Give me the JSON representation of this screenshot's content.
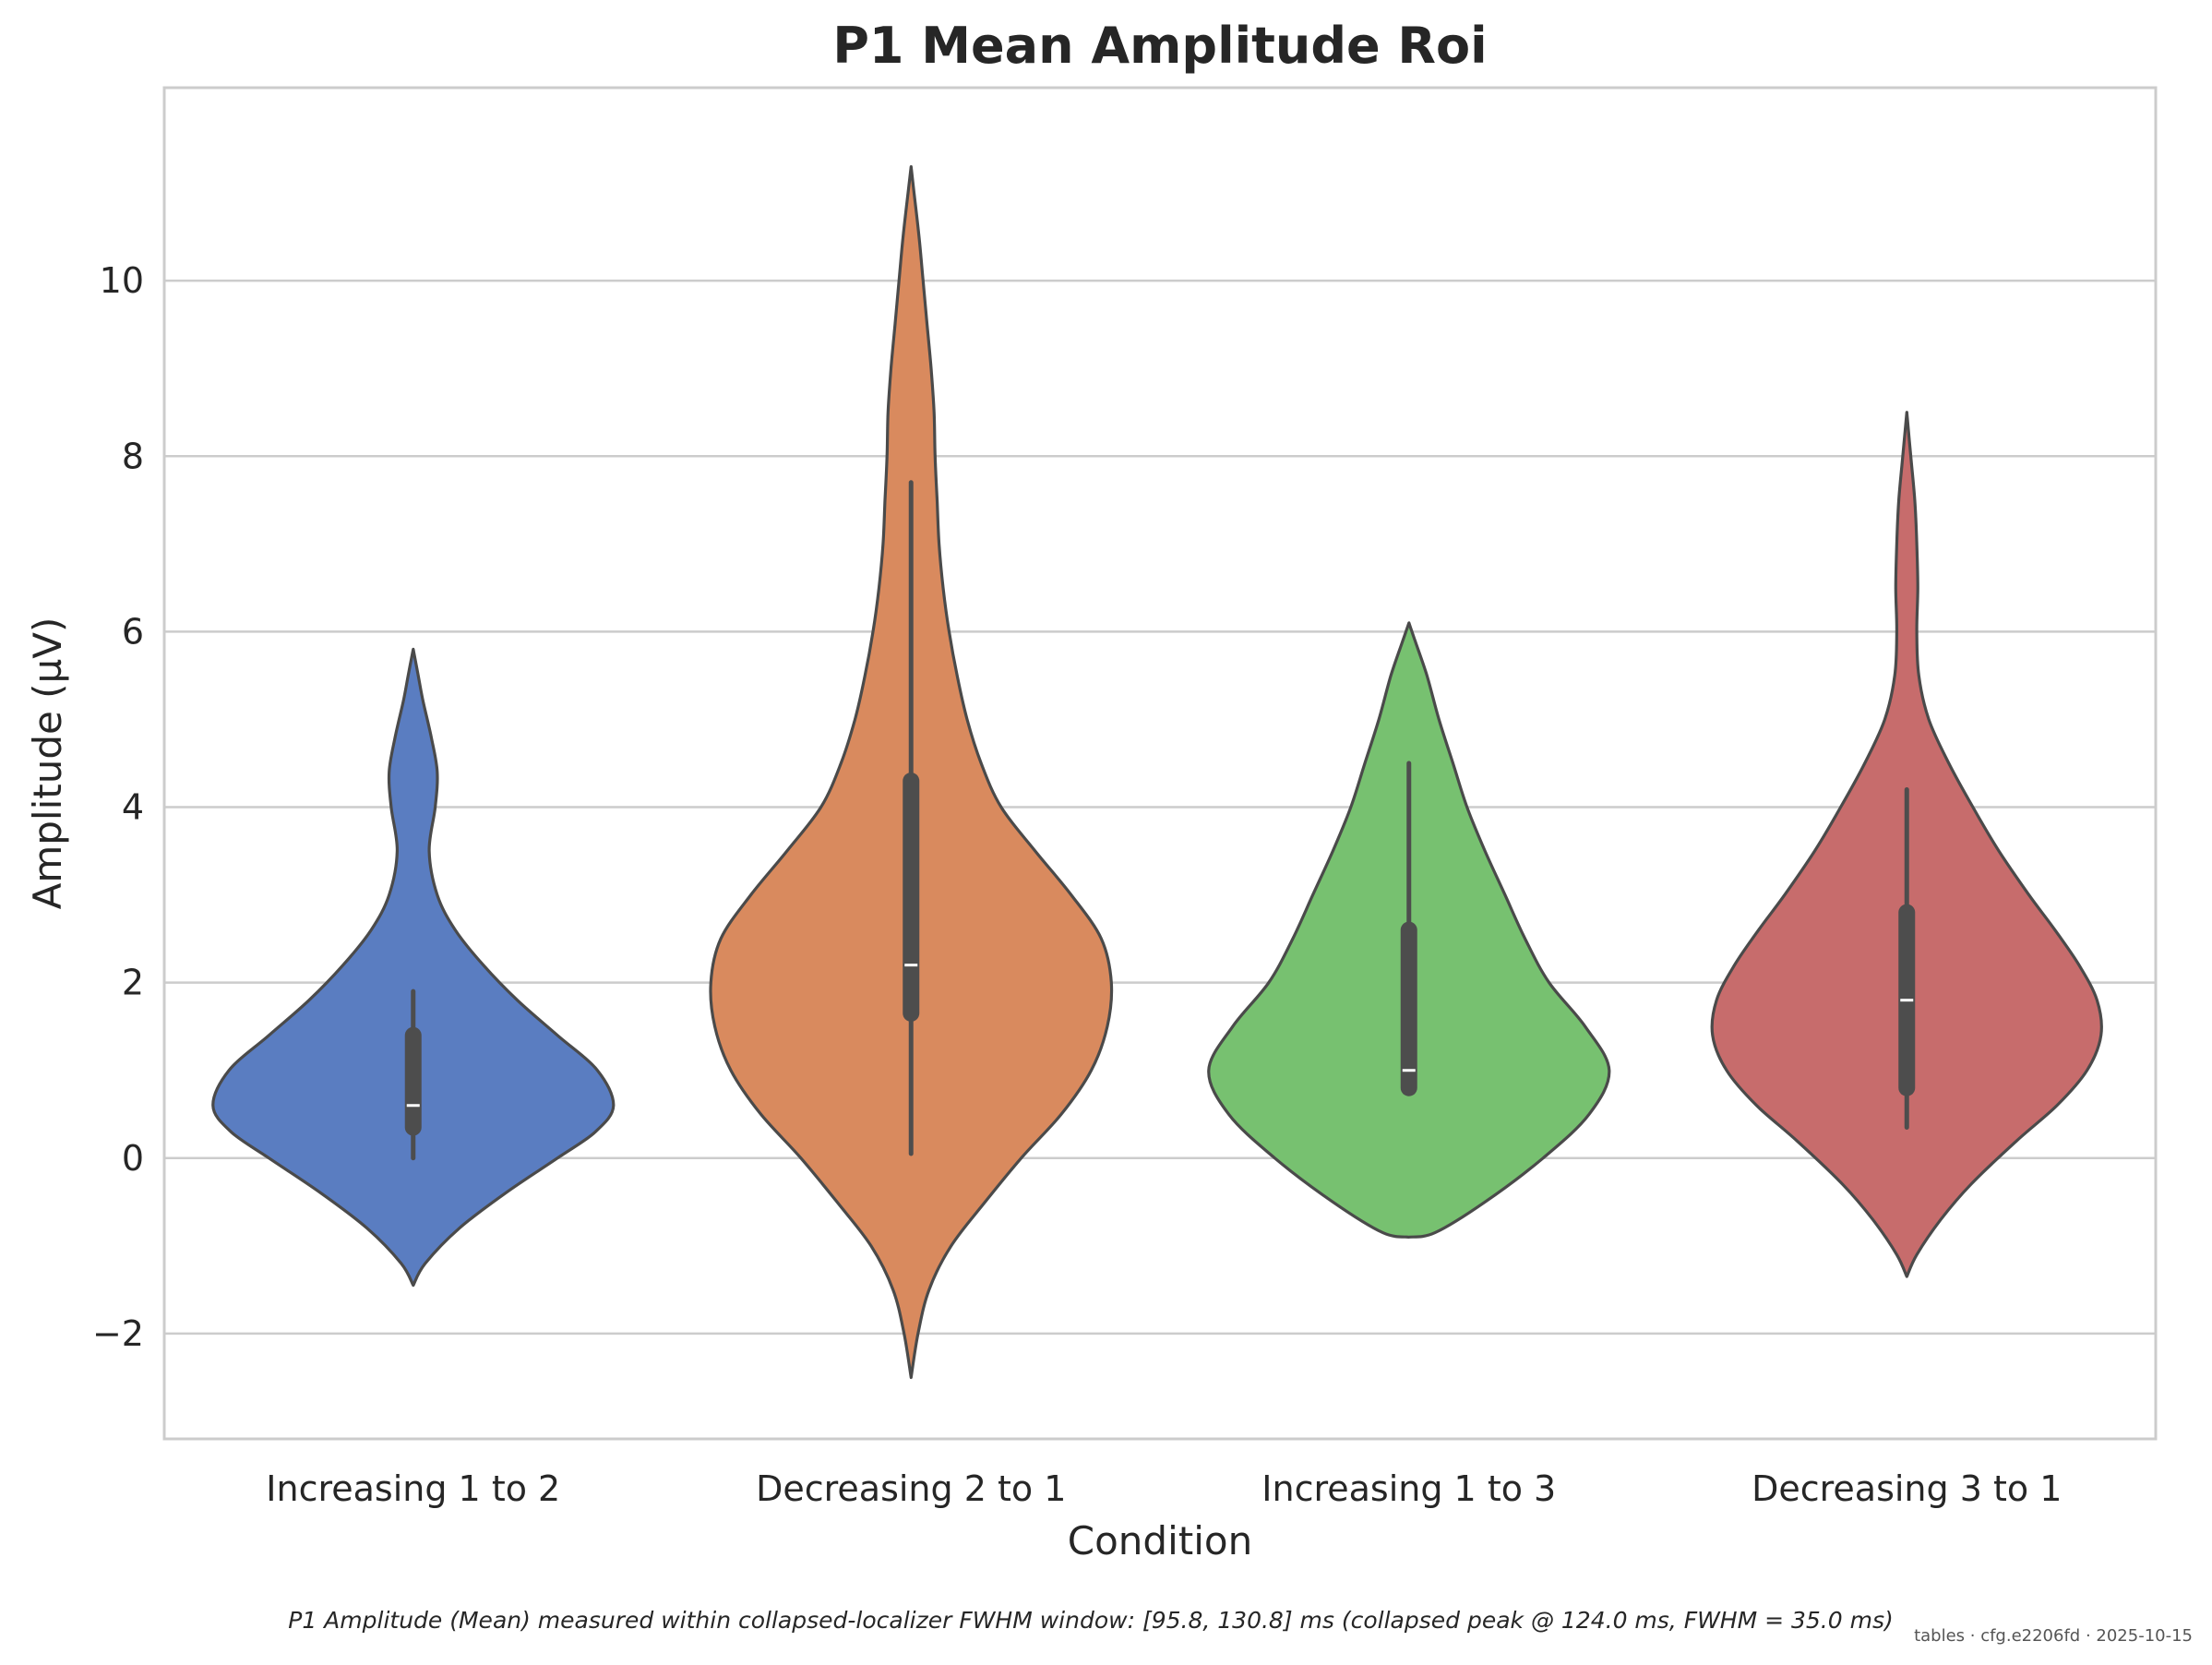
{
  "chart_data": {
    "type": "violin",
    "title": "P1 Mean Amplitude Roi",
    "xlabel": "Condition",
    "ylabel": "Amplitude (µV)",
    "ylim": [
      -3.2,
      12.2
    ],
    "yticks": [
      -2,
      0,
      2,
      4,
      6,
      8,
      10
    ],
    "ytick_labels": [
      "−2",
      "0",
      "2",
      "4",
      "6",
      "8",
      "10"
    ],
    "grid": "horizontal",
    "categories": [
      "Increasing 1 to 2",
      "Decreasing 2 to 1",
      "Increasing 1 to 3",
      "Decreasing 3 to 1"
    ],
    "series": [
      {
        "category": "Increasing 1 to 2",
        "color": "#5a7dc1",
        "min": -1.45,
        "max": 5.8,
        "whisker_low": 0.0,
        "whisker_high": 1.9,
        "q1": 0.35,
        "median": 0.6,
        "q3": 1.4,
        "density": [
          [
            -1.45,
            0.0
          ],
          [
            -1.2,
            0.06
          ],
          [
            -0.8,
            0.23
          ],
          [
            -0.4,
            0.46
          ],
          [
            0.0,
            0.72
          ],
          [
            0.3,
            0.91
          ],
          [
            0.6,
            1.0
          ],
          [
            1.0,
            0.92
          ],
          [
            1.4,
            0.72
          ],
          [
            1.8,
            0.52
          ],
          [
            2.2,
            0.35
          ],
          [
            2.6,
            0.21
          ],
          [
            3.0,
            0.12
          ],
          [
            3.5,
            0.08
          ],
          [
            4.0,
            0.11
          ],
          [
            4.4,
            0.12
          ],
          [
            4.8,
            0.09
          ],
          [
            5.2,
            0.05
          ],
          [
            5.5,
            0.025
          ],
          [
            5.8,
            0.0
          ]
        ]
      },
      {
        "category": "Decreasing 2 to 1",
        "color": "#d98a5e",
        "min": -2.5,
        "max": 11.3,
        "whisker_low": 0.05,
        "whisker_high": 7.7,
        "q1": 1.65,
        "median": 2.2,
        "q3": 4.3,
        "density": [
          [
            -2.5,
            0.0
          ],
          [
            -2.0,
            0.035
          ],
          [
            -1.5,
            0.09
          ],
          [
            -1.0,
            0.2
          ],
          [
            -0.5,
            0.37
          ],
          [
            0.0,
            0.55
          ],
          [
            0.5,
            0.75
          ],
          [
            1.0,
            0.9
          ],
          [
            1.5,
            0.98
          ],
          [
            2.0,
            1.0
          ],
          [
            2.5,
            0.95
          ],
          [
            3.0,
            0.8
          ],
          [
            3.5,
            0.62
          ],
          [
            4.0,
            0.45
          ],
          [
            4.5,
            0.35
          ],
          [
            5.0,
            0.28
          ],
          [
            5.5,
            0.23
          ],
          [
            6.0,
            0.19
          ],
          [
            6.5,
            0.16
          ],
          [
            7.0,
            0.14
          ],
          [
            7.5,
            0.13
          ],
          [
            8.0,
            0.12
          ],
          [
            8.5,
            0.115
          ],
          [
            9.0,
            0.1
          ],
          [
            9.5,
            0.08
          ],
          [
            10.0,
            0.06
          ],
          [
            10.5,
            0.04
          ],
          [
            11.0,
            0.015
          ],
          [
            11.3,
            0.0
          ]
        ]
      },
      {
        "category": "Increasing 1 to 3",
        "color": "#77c170",
        "min": -0.9,
        "max": 6.1,
        "whisker_low": 0.75,
        "whisker_high": 4.5,
        "q1": 0.8,
        "median": 1.0,
        "q3": 2.6,
        "density": [
          [
            -0.9,
            0.0
          ],
          [
            -0.85,
            0.13
          ],
          [
            -0.5,
            0.38
          ],
          [
            0.0,
            0.67
          ],
          [
            0.5,
            0.9
          ],
          [
            1.0,
            1.0
          ],
          [
            1.5,
            0.88
          ],
          [
            2.0,
            0.7
          ],
          [
            2.5,
            0.58
          ],
          [
            3.0,
            0.48
          ],
          [
            3.5,
            0.38
          ],
          [
            4.0,
            0.29
          ],
          [
            4.5,
            0.22
          ],
          [
            5.0,
            0.15
          ],
          [
            5.5,
            0.09
          ],
          [
            5.9,
            0.03
          ],
          [
            6.1,
            0.0
          ]
        ]
      },
      {
        "category": "Decreasing 3 to 1",
        "color": "#c76c6c",
        "min": -1.35,
        "max": 8.5,
        "whisker_low": 0.35,
        "whisker_high": 4.2,
        "q1": 0.8,
        "median": 1.8,
        "q3": 2.8,
        "density": [
          [
            -1.35,
            0.0
          ],
          [
            -1.1,
            0.05
          ],
          [
            -0.7,
            0.17
          ],
          [
            -0.3,
            0.32
          ],
          [
            0.2,
            0.55
          ],
          [
            0.6,
            0.75
          ],
          [
            1.0,
            0.9
          ],
          [
            1.4,
            0.97
          ],
          [
            1.8,
            0.95
          ],
          [
            2.2,
            0.86
          ],
          [
            2.6,
            0.74
          ],
          [
            3.0,
            0.61
          ],
          [
            3.5,
            0.46
          ],
          [
            4.0,
            0.33
          ],
          [
            4.5,
            0.21
          ],
          [
            5.0,
            0.11
          ],
          [
            5.5,
            0.06
          ],
          [
            6.0,
            0.05
          ],
          [
            6.5,
            0.055
          ],
          [
            7.0,
            0.05
          ],
          [
            7.5,
            0.04
          ],
          [
            8.0,
            0.02
          ],
          [
            8.5,
            0.0
          ]
        ]
      }
    ],
    "caption": "P1 Amplitude (Mean) measured within collapsed-localizer FWHM window: [95.8, 130.8] ms (collapsed peak @ 124.0 ms, FWHM = 35.0 ms)",
    "footer": "tables · cfg.e2206fd · 2025-10-15"
  }
}
